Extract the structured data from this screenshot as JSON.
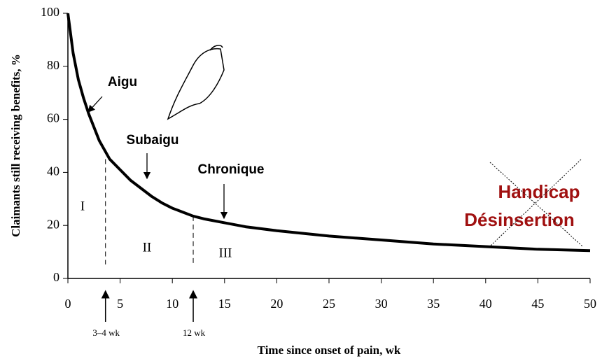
{
  "chart_data": {
    "type": "line",
    "x": [
      0,
      0.5,
      1,
      1.5,
      2,
      3,
      4,
      5,
      6,
      7,
      8,
      9,
      10,
      11,
      12,
      13,
      15,
      17,
      20,
      25,
      30,
      35,
      40,
      45,
      50
    ],
    "values": [
      100,
      85,
      75,
      68,
      62,
      52,
      45,
      41,
      37,
      34,
      31,
      28.5,
      26.5,
      25,
      23.5,
      22.5,
      21,
      19.5,
      18,
      16,
      14.5,
      13,
      12,
      11,
      10.5
    ],
    "color": "#000000",
    "xlim": [
      0,
      50
    ],
    "xticks": [
      0,
      5,
      10,
      15,
      20,
      25,
      30,
      35,
      40,
      45,
      50
    ],
    "ylim": [
      0,
      100
    ],
    "yticks": [
      0,
      20,
      40,
      60,
      80,
      100
    ],
    "xlabel": "Time since onset of pain, wk",
    "ylabel": "Claimants still receiving benefits, %",
    "phase_boundaries": [
      3.6,
      12
    ],
    "phases": [
      "I",
      "II",
      "III"
    ],
    "boundary_labels": [
      "3–4 wk",
      "12 wk"
    ],
    "annotations": [
      "Aigu",
      "Subaigu",
      "Chronique"
    ],
    "crossed_out": [
      "Handicap",
      "Désinsertion"
    ]
  }
}
